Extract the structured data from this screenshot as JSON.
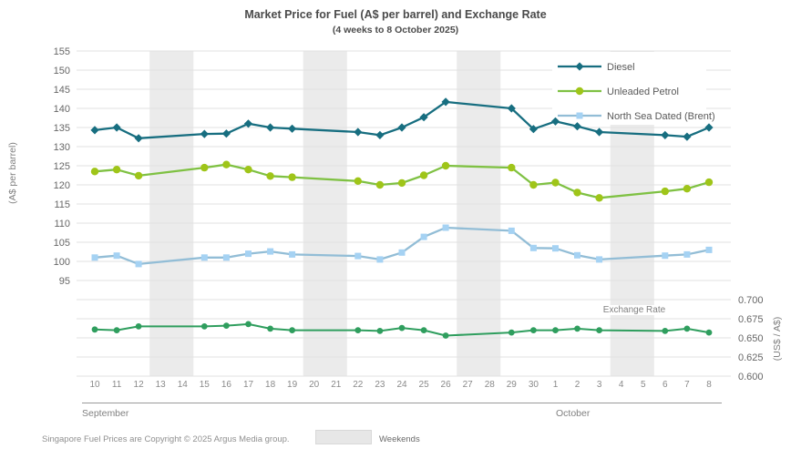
{
  "title": "Market Price for Fuel (A$ per barrel) and Exchange Rate",
  "subtitle": "(4 weeks to 8 October 2025)",
  "footer": {
    "copyright": "Singapore Fuel Prices are Copyright © 2025 Argus Media group.",
    "weekends_label": "Weekends"
  },
  "colors": {
    "diesel": "#176e80",
    "unleaded_line": "#7fc143",
    "unleaded_marker": "#9fc519",
    "brent_line": "#92bdd6",
    "brent_marker": "#a5d2f3",
    "exchange": "#2f9e5e",
    "grid": "#e2e2e2",
    "weekend_band": "#ebebeb",
    "text_dark": "#4a4a4a",
    "text_gray": "#808080"
  },
  "chart_data": {
    "type": "line",
    "title": "Market Price for Fuel (A$ per barrel) and Exchange Rate",
    "subtitle": "(4 weeks to 8 October 2025)",
    "grid": true,
    "annotation": "Exchange Rate",
    "left_axis": {
      "label": "(A$ per barrel)",
      "ticks": [
        "155",
        "150",
        "145",
        "140",
        "135",
        "130",
        "125",
        "120",
        "115",
        "110",
        "105",
        "100",
        "95"
      ],
      "range": [
        95,
        155
      ]
    },
    "right_axis": {
      "label": "(US$ / A$)",
      "ticks": [
        "0.700",
        "0.675",
        "0.650",
        "0.625",
        "0.600"
      ],
      "range": [
        0.6,
        0.7
      ]
    },
    "x": {
      "day_labels": [
        "10",
        "11",
        "12",
        "13",
        "14",
        "15",
        "16",
        "17",
        "18",
        "19",
        "20",
        "21",
        "22",
        "23",
        "24",
        "25",
        "26",
        "27",
        "28",
        "29",
        "30",
        "1",
        "2",
        "3",
        "4",
        "5",
        "6",
        "7",
        "8"
      ],
      "month_groups": [
        {
          "label": "September",
          "start": 0,
          "end": 20
        },
        {
          "label": "October",
          "start": 21,
          "end": 28
        }
      ],
      "weekend_bands": [
        [
          3,
          4
        ],
        [
          10,
          11
        ],
        [
          17,
          18
        ],
        [
          24,
          25
        ]
      ]
    },
    "legend": {
      "position": "top-right",
      "entries": [
        "Diesel",
        "Unleaded Petrol",
        "North Sea Dated (Brent)"
      ]
    },
    "series": [
      {
        "name": "Diesel",
        "axis": "left",
        "marker": "diamond",
        "line_color": "#176e80",
        "marker_color": "#176e80",
        "values": [
          134.3,
          135.0,
          132.2,
          null,
          null,
          133.3,
          133.4,
          136.0,
          135.0,
          134.7,
          null,
          null,
          133.8,
          133.0,
          135.0,
          137.7,
          141.7,
          null,
          null,
          140.0,
          134.6,
          136.6,
          135.3,
          133.8,
          null,
          null,
          133.0,
          132.6,
          135.0
        ]
      },
      {
        "name": "Unleaded Petrol",
        "axis": "left",
        "marker": "circle",
        "line_color": "#7fc143",
        "marker_color": "#9fc519",
        "values": [
          123.5,
          124.0,
          122.4,
          null,
          null,
          124.5,
          125.3,
          124.0,
          122.3,
          122.0,
          null,
          null,
          121.0,
          120.0,
          120.5,
          122.5,
          125.0,
          null,
          null,
          124.5,
          120.0,
          120.6,
          118.0,
          116.6,
          null,
          null,
          118.3,
          119.0,
          120.7
        ]
      },
      {
        "name": "North Sea Dated (Brent)",
        "axis": "left",
        "marker": "square",
        "line_color": "#92bdd6",
        "marker_color": "#a5d2f3",
        "values": [
          101.0,
          101.5,
          99.3,
          null,
          null,
          101.0,
          101.0,
          102.0,
          102.6,
          101.8,
          null,
          null,
          101.4,
          100.5,
          102.3,
          106.4,
          108.8,
          null,
          null,
          108.0,
          103.5,
          103.4,
          101.6,
          100.5,
          null,
          null,
          101.5,
          101.8,
          103.0
        ]
      },
      {
        "name": "Exchange Rate",
        "axis": "right",
        "marker": "circle-sm",
        "line_color": "#2f9e5e",
        "marker_color": "#2f9e5e",
        "values": [
          0.661,
          0.66,
          0.665,
          null,
          null,
          0.665,
          0.666,
          0.668,
          0.662,
          0.66,
          null,
          null,
          0.66,
          0.659,
          0.663,
          0.66,
          0.653,
          null,
          null,
          0.657,
          0.66,
          0.66,
          0.662,
          0.66,
          null,
          null,
          0.659,
          0.662,
          0.657
        ]
      }
    ]
  }
}
